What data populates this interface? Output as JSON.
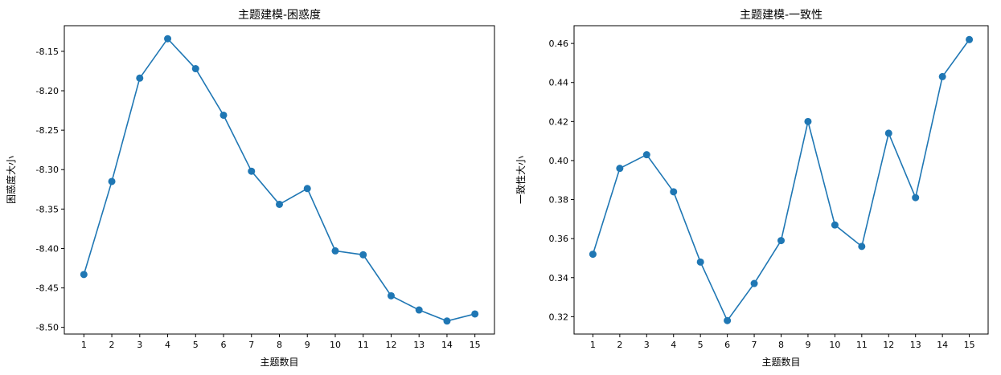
{
  "chart_data": [
    {
      "type": "line",
      "title": "主题建模-困惑度",
      "xlabel": "主题数目",
      "ylabel": "困惑度大小",
      "x": [
        1,
        2,
        3,
        4,
        5,
        6,
        7,
        8,
        9,
        10,
        11,
        12,
        13,
        14,
        15
      ],
      "series": [
        {
          "values": [
            -8.433,
            -8.315,
            -8.184,
            -8.134,
            -8.172,
            -8.231,
            -8.302,
            -8.344,
            -8.324,
            -8.403,
            -8.408,
            -8.46,
            -8.478,
            -8.492,
            -8.483
          ],
          "color": "#1f77b4"
        }
      ],
      "xticks": [
        "1",
        "2",
        "3",
        "4",
        "5",
        "6",
        "7",
        "8",
        "9",
        "10",
        "11",
        "12",
        "13",
        "14",
        "15"
      ],
      "yticks": [
        -8.15,
        -8.2,
        -8.25,
        -8.3,
        -8.35,
        -8.4,
        -8.45,
        -8.5
      ],
      "ytick_labels": [
        "-8.15",
        "-8.20",
        "-8.25",
        "-8.30",
        "-8.35",
        "-8.40",
        "-8.45",
        "-8.50"
      ],
      "xlim": [
        0.3,
        15.7
      ],
      "ylim": [
        -8.5085,
        -8.1175
      ],
      "grid": false
    },
    {
      "type": "line",
      "title": "主题建模-一致性",
      "xlabel": "主题数目",
      "ylabel": "一致性大小",
      "x": [
        1,
        2,
        3,
        4,
        5,
        6,
        7,
        8,
        9,
        10,
        11,
        12,
        13,
        14,
        15
      ],
      "series": [
        {
          "values": [
            0.352,
            0.396,
            0.403,
            0.384,
            0.348,
            0.318,
            0.337,
            0.359,
            0.42,
            0.367,
            0.356,
            0.414,
            0.381,
            0.443,
            0.462
          ],
          "color": "#1f77b4"
        }
      ],
      "xticks": [
        "1",
        "2",
        "3",
        "4",
        "5",
        "6",
        "7",
        "8",
        "9",
        "10",
        "11",
        "12",
        "13",
        "14",
        "15"
      ],
      "yticks": [
        0.32,
        0.34,
        0.36,
        0.38,
        0.4,
        0.42,
        0.44,
        0.46
      ],
      "ytick_labels": [
        "0.32",
        "0.34",
        "0.36",
        "0.38",
        "0.40",
        "0.42",
        "0.44",
        "0.46"
      ],
      "xlim": [
        0.3,
        15.7
      ],
      "ylim": [
        0.3111,
        0.4691
      ],
      "grid": false
    }
  ]
}
